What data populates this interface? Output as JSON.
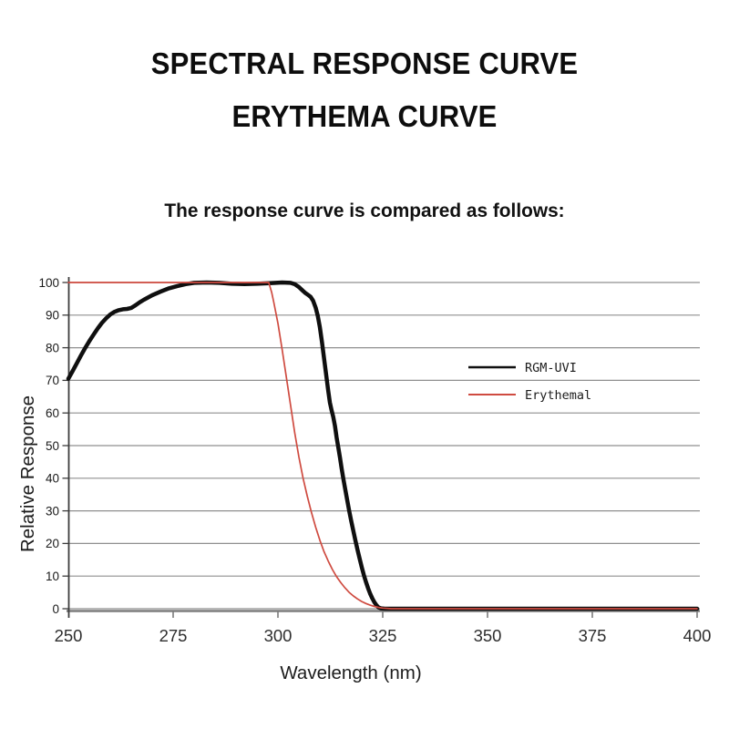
{
  "header": {
    "title_line1": "SPECTRAL RESPONSE CURVE",
    "title_line2": "ERYTHEMA CURVE",
    "subtitle": "The response curve is compared as follows:"
  },
  "chart_data": {
    "type": "line",
    "title": "",
    "xlabel": "Wavelength (nm)",
    "ylabel": "Relative Response",
    "xlim": [
      250,
      400
    ],
    "ylim": [
      0,
      100
    ],
    "x_ticks": [
      250,
      275,
      300,
      325,
      350,
      375,
      400
    ],
    "y_ticks": [
      0,
      10,
      20,
      30,
      40,
      50,
      60,
      70,
      80,
      90,
      100
    ],
    "grid": "horizontal",
    "legend_position": "center-right",
    "series": [
      {
        "name": "RGM-UVI",
        "color": "#0f0f0f",
        "stroke_width": 4.5,
        "points": [
          [
            250,
            70.5
          ],
          [
            251,
            72.8
          ],
          [
            252,
            75.2
          ],
          [
            253,
            77.6
          ],
          [
            254,
            79.9
          ],
          [
            255,
            82
          ],
          [
            256,
            84
          ],
          [
            257,
            85.9
          ],
          [
            258,
            87.6
          ],
          [
            259,
            89
          ],
          [
            260,
            90.2
          ],
          [
            261,
            91
          ],
          [
            262,
            91.5
          ],
          [
            263,
            91.8
          ],
          [
            264,
            91.9
          ],
          [
            265,
            92.2
          ],
          [
            266,
            93
          ],
          [
            267,
            93.9
          ],
          [
            268,
            94.7
          ],
          [
            269,
            95.4
          ],
          [
            270,
            96.1
          ],
          [
            272,
            97.2
          ],
          [
            274,
            98.2
          ],
          [
            276,
            98.9
          ],
          [
            278,
            99.5
          ],
          [
            280,
            99.9
          ],
          [
            283,
            100
          ],
          [
            286,
            99.9
          ],
          [
            289,
            99.6
          ],
          [
            292,
            99.5
          ],
          [
            295,
            99.6
          ],
          [
            298,
            99.8
          ],
          [
            301,
            100
          ],
          [
            303,
            99.9
          ],
          [
            304,
            99.5
          ],
          [
            305,
            98.6
          ],
          [
            306,
            97.4
          ],
          [
            306.6,
            96.7
          ],
          [
            307.2,
            96.2
          ],
          [
            307.8,
            95.6
          ],
          [
            308.4,
            94.4
          ],
          [
            309,
            92.3
          ],
          [
            309.5,
            89.8
          ],
          [
            310,
            86.3
          ],
          [
            310.5,
            81.8
          ],
          [
            311,
            76.8
          ],
          [
            311.5,
            71.8
          ],
          [
            312,
            66.8
          ],
          [
            312.4,
            63.2
          ],
          [
            312.8,
            60.8
          ],
          [
            313.2,
            58.8
          ],
          [
            313.6,
            56
          ],
          [
            314,
            52.5
          ],
          [
            314.4,
            49.5
          ],
          [
            314.8,
            46.3
          ],
          [
            315.2,
            43
          ],
          [
            315.6,
            39.8
          ],
          [
            316,
            37
          ],
          [
            316.5,
            33.5
          ],
          [
            317,
            30
          ],
          [
            317.5,
            26.8
          ],
          [
            318,
            23.8
          ],
          [
            318.5,
            20.8
          ],
          [
            319,
            18
          ],
          [
            319.5,
            15.3
          ],
          [
            320,
            12.7
          ],
          [
            320.5,
            10.3
          ],
          [
            321,
            8.2
          ],
          [
            321.5,
            6.3
          ],
          [
            322,
            4.6
          ],
          [
            322.5,
            3.2
          ],
          [
            323,
            2
          ],
          [
            323.5,
            1.1
          ],
          [
            324,
            0.4
          ],
          [
            324.6,
            0.1
          ],
          [
            325.5,
            0
          ],
          [
            330,
            0
          ],
          [
            400,
            0
          ]
        ]
      },
      {
        "name": "Erythemal",
        "color": "#cf4b40",
        "stroke_width": 1.7,
        "points": [
          [
            250,
            100
          ],
          [
            297.8,
            100
          ],
          [
            298.5,
            97
          ],
          [
            299,
            94
          ],
          [
            300,
            87.5
          ],
          [
            301,
            79.5
          ],
          [
            302,
            71
          ],
          [
            303,
            62.5
          ],
          [
            304,
            54
          ],
          [
            305,
            46.5
          ],
          [
            306,
            40
          ],
          [
            307,
            34.5
          ],
          [
            308,
            29.5
          ],
          [
            309,
            25
          ],
          [
            310,
            21
          ],
          [
            311,
            17.5
          ],
          [
            312,
            14.6
          ],
          [
            313,
            12
          ],
          [
            314,
            9.8
          ],
          [
            315,
            8
          ],
          [
            316,
            6.4
          ],
          [
            317,
            5
          ],
          [
            318,
            3.9
          ],
          [
            319,
            3
          ],
          [
            320,
            2.2
          ],
          [
            321,
            1.6
          ],
          [
            322,
            1.1
          ],
          [
            323,
            0.7
          ],
          [
            324,
            0.4
          ],
          [
            325,
            0.2
          ],
          [
            326,
            0.1
          ],
          [
            327,
            0
          ],
          [
            400,
            0
          ]
        ]
      }
    ]
  },
  "colors": {
    "background": "#ffffff",
    "gridline": "#8f8f8f",
    "y_axis": "#3c3c3c",
    "x_axis": "#7c7c7c",
    "tick_label": "#1a1a1a",
    "axis_title": "#1c1c1c"
  }
}
